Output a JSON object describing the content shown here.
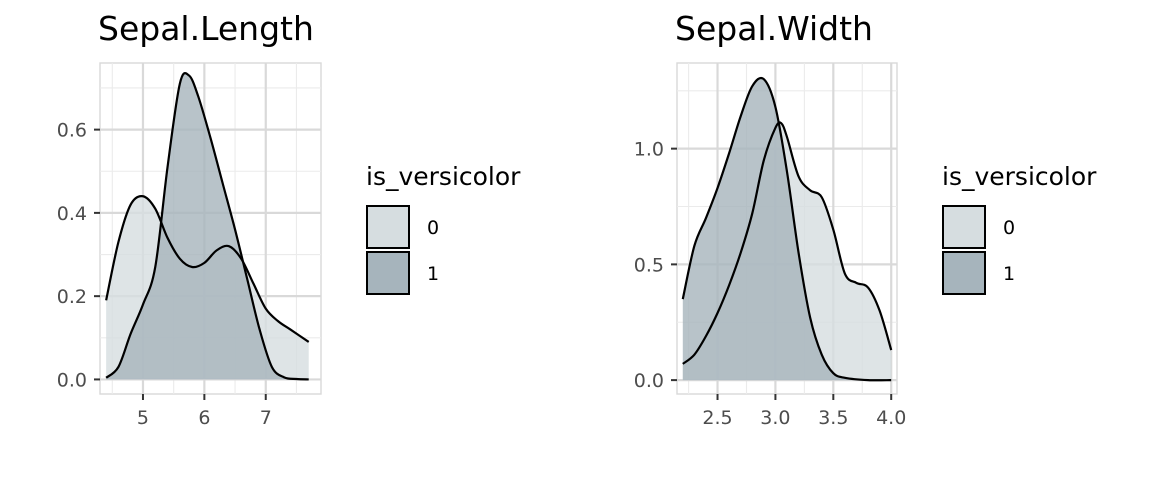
{
  "chart_data": [
    {
      "type": "area",
      "title": "Sepal.Length",
      "xlabel": "",
      "ylabel": "",
      "xlim": [
        4.3,
        7.9
      ],
      "ylim": [
        -0.035,
        0.76
      ],
      "x_ticks": [
        5,
        6,
        7
      ],
      "x_tick_labels": [
        "5",
        "6",
        "7"
      ],
      "y_ticks": [
        0.0,
        0.2,
        0.4,
        0.6
      ],
      "y_tick_labels": [
        "0.0",
        "0.2",
        "0.4",
        "0.6"
      ],
      "grid": true,
      "legend": {
        "title": "is_versicolor",
        "position": "right",
        "labels": [
          "0",
          "1"
        ]
      },
      "series": [
        {
          "name": "0",
          "color": "#d6dde0",
          "x": [
            4.4,
            4.6,
            4.8,
            5.0,
            5.2,
            5.4,
            5.6,
            5.8,
            6.0,
            6.2,
            6.4,
            6.6,
            6.8,
            7.0,
            7.2,
            7.4,
            7.7
          ],
          "y": [
            0.19,
            0.33,
            0.42,
            0.44,
            0.41,
            0.34,
            0.29,
            0.27,
            0.28,
            0.31,
            0.32,
            0.29,
            0.23,
            0.17,
            0.14,
            0.12,
            0.09
          ]
        },
        {
          "name": "1",
          "color": "#a6b4bc",
          "x": [
            4.4,
            4.6,
            4.8,
            5.0,
            5.2,
            5.4,
            5.6,
            5.75,
            5.9,
            6.1,
            6.3,
            6.5,
            6.7,
            6.9,
            7.1,
            7.3,
            7.5,
            7.7
          ],
          "y": [
            0.004,
            0.03,
            0.11,
            0.18,
            0.27,
            0.51,
            0.71,
            0.73,
            0.68,
            0.58,
            0.47,
            0.36,
            0.24,
            0.12,
            0.03,
            0.005,
            0.001,
            0.0
          ]
        }
      ]
    },
    {
      "type": "area",
      "title": "Sepal.Width",
      "xlabel": "",
      "ylabel": "",
      "xlim": [
        2.15,
        4.05
      ],
      "ylim": [
        -0.06,
        1.37
      ],
      "x_ticks": [
        2.5,
        3.0,
        3.5,
        4.0
      ],
      "x_tick_labels": [
        "2.5",
        "3.0",
        "3.5",
        "4.0"
      ],
      "y_ticks": [
        0.0,
        0.5,
        1.0
      ],
      "y_tick_labels": [
        "0.0",
        "0.5",
        "1.0"
      ],
      "grid": true,
      "legend": {
        "title": "is_versicolor",
        "position": "right",
        "labels": [
          "0",
          "1"
        ]
      },
      "series": [
        {
          "name": "0",
          "color": "#d6dde0",
          "x": [
            2.2,
            2.3,
            2.4,
            2.5,
            2.6,
            2.7,
            2.8,
            2.9,
            3.0,
            3.05,
            3.1,
            3.2,
            3.3,
            3.4,
            3.5,
            3.6,
            3.7,
            3.8,
            3.9,
            4.0
          ],
          "y": [
            0.07,
            0.11,
            0.19,
            0.29,
            0.41,
            0.55,
            0.72,
            0.95,
            1.09,
            1.11,
            1.05,
            0.88,
            0.82,
            0.79,
            0.65,
            0.46,
            0.42,
            0.4,
            0.3,
            0.13
          ]
        },
        {
          "name": "1",
          "color": "#a6b4bc",
          "x": [
            2.2,
            2.3,
            2.4,
            2.5,
            2.6,
            2.7,
            2.8,
            2.9,
            3.0,
            3.1,
            3.2,
            3.3,
            3.4,
            3.5,
            3.6,
            3.8,
            4.0
          ],
          "y": [
            0.35,
            0.58,
            0.7,
            0.83,
            0.98,
            1.14,
            1.27,
            1.3,
            1.18,
            0.9,
            0.55,
            0.27,
            0.11,
            0.03,
            0.01,
            0.0,
            0.0
          ]
        }
      ]
    }
  ]
}
